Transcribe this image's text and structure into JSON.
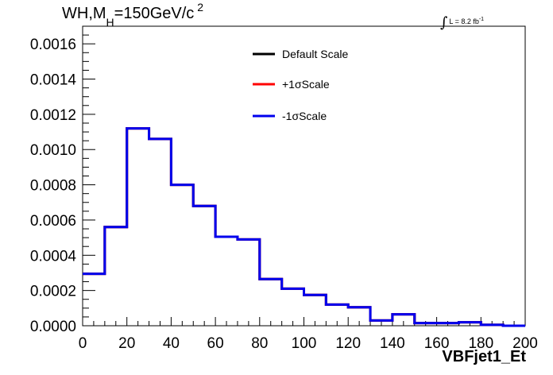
{
  "title": {
    "base": "WH,M",
    "subscript": "H",
    "rest": "=150GeV/c",
    "superscript": "2"
  },
  "lumi": {
    "integral": "∫",
    "text": "L = 8.2 fb",
    "superscript": "-1"
  },
  "chart_data": {
    "type": "step-histogram",
    "xlabel": "VBFjet1_Et",
    "ylabel": "",
    "xlim": [
      0,
      200
    ],
    "ylim": [
      0,
      0.0017
    ],
    "x_ticks": [
      0,
      20,
      40,
      60,
      80,
      100,
      120,
      140,
      160,
      180,
      200
    ],
    "x_tick_labels": [
      "0",
      "20",
      "40",
      "60",
      "80",
      "100",
      "120",
      "140",
      "160",
      "180",
      "200"
    ],
    "y_ticks": [
      0,
      0.0002,
      0.0004,
      0.0006,
      0.0008,
      0.001,
      0.0012,
      0.0014,
      0.0016
    ],
    "y_tick_labels": [
      "0.0000",
      "0.0002",
      "0.0004",
      "0.0006",
      "0.0008",
      "0.0010",
      "0.0012",
      "0.0014",
      "0.0016"
    ],
    "bin_edges": [
      0,
      10,
      20,
      30,
      40,
      50,
      60,
      70,
      80,
      90,
      100,
      110,
      120,
      130,
      140,
      150,
      160,
      170,
      180,
      190,
      200
    ],
    "series": [
      {
        "name": "Default Scale",
        "color": "#000000",
        "values": [
          0.000295,
          0.00056,
          0.00112,
          0.00106,
          0.0008,
          0.00068,
          0.000505,
          0.00049,
          0.000265,
          0.00021,
          0.000175,
          0.00012,
          0.000105,
          3e-05,
          6.5e-05,
          1.5e-05,
          1.5e-05,
          2e-05,
          5e-06,
          0.0
        ]
      },
      {
        "name": "+1σScale",
        "color": "#ff0000",
        "values": [
          0.000295,
          0.00056,
          0.00112,
          0.00106,
          0.0008,
          0.00068,
          0.000505,
          0.00049,
          0.000265,
          0.00021,
          0.000175,
          0.00012,
          0.000105,
          3e-05,
          6.5e-05,
          1.5e-05,
          1.5e-05,
          2e-05,
          5e-06,
          0.0
        ]
      },
      {
        "name": "-1σScale",
        "color": "#0000ee",
        "values": [
          0.000295,
          0.00056,
          0.00112,
          0.00106,
          0.0008,
          0.00068,
          0.000505,
          0.00049,
          0.000265,
          0.00021,
          0.000175,
          0.00012,
          0.000105,
          3e-05,
          6.5e-05,
          1.5e-05,
          1.5e-05,
          2e-05,
          5e-06,
          0.0
        ]
      }
    ],
    "legend": {
      "position": "top-center",
      "entries": [
        "Default Scale",
        "+1σScale",
        "-1σScale"
      ]
    },
    "grid": false
  }
}
